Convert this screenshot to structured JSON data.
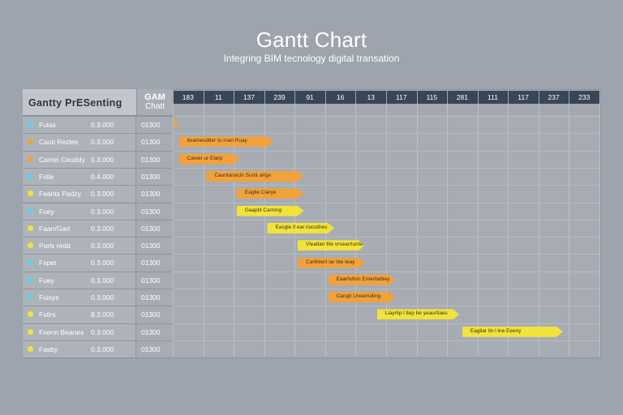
{
  "title": "Gantt Chart",
  "subtitle": "Integring BIM tecnology digital transation",
  "table": {
    "header": "Gantty PrESenting",
    "sub_header_1": "GAM",
    "sub_header_2": "Chatt"
  },
  "colors": {
    "orange": "#f2a23a",
    "yellow": "#f1e33a",
    "cyan": "#5fd3f0",
    "header_dark": "#394657"
  },
  "chart_data": {
    "type": "bar",
    "title": "Gantt Chart",
    "subtitle": "Integring BIM tecnology digital transation",
    "x_ticks": [
      "183",
      "11",
      "137",
      "239",
      "91",
      "16",
      "13",
      "117",
      "115",
      "281",
      "111",
      "117",
      "237",
      "233"
    ],
    "rows": [
      {
        "name": "Fulas",
        "dot": "cyan",
        "v1": "0.3.000",
        "v2": "01300"
      },
      {
        "name": "Cauti Rezles",
        "dot": "orange",
        "v1": "0.3.000",
        "v2": "01300"
      },
      {
        "name": "Carnin Ceuddy",
        "dot": "orange",
        "v1": "0.3.000",
        "v2": "01300"
      },
      {
        "name": "Fstle",
        "dot": "cyan",
        "v1": "0.4.000",
        "v2": "01300"
      },
      {
        "name": "Feants Padzy",
        "dot": "yellow",
        "v1": "0.3.000",
        "v2": "01300"
      },
      {
        "name": "Fuey",
        "dot": "cyan",
        "v1": "0.3.000",
        "v2": "01300"
      },
      {
        "name": "Faan/Gart",
        "dot": "yellow",
        "v1": "0.3.000",
        "v2": "01300"
      },
      {
        "name": "Parls redd",
        "dot": "yellow",
        "v1": "0.3.000",
        "v2": "01300"
      },
      {
        "name": "Fxpet",
        "dot": "cyan",
        "v1": "0.3.000",
        "v2": "01300"
      },
      {
        "name": "Fuey",
        "dot": "cyan",
        "v1": "0.3.000",
        "v2": "01300"
      },
      {
        "name": "Fuisys",
        "dot": "cyan",
        "v1": "0.3.000",
        "v2": "01300"
      },
      {
        "name": "Fstlrs",
        "dot": "yellow",
        "v1": "8.3.000",
        "v2": "01300"
      },
      {
        "name": "Fxerm Beanes",
        "dot": "yellow",
        "v1": "0.3.000",
        "v2": "01300"
      },
      {
        "name": "Fasby",
        "dot": "yellow",
        "v1": "0.3.000",
        "v2": "01300"
      }
    ],
    "tasks": [
      {
        "row": 1,
        "label": "Iteamesdtler tu man Ruay",
        "start": 0.2,
        "end": 3.3,
        "color": "orange"
      },
      {
        "row": 2,
        "label": "Caneir ur Elarp",
        "start": 0.2,
        "end": 2.2,
        "color": "orange"
      },
      {
        "row": 3,
        "label": "Cauntaroicin Sumt alrge",
        "start": 1.1,
        "end": 4.3,
        "color": "orange"
      },
      {
        "row": 4,
        "label": "Eaglle Ciarye",
        "start": 2.1,
        "end": 4.3,
        "color": "orange"
      },
      {
        "row": 5,
        "label": "Gaaplit Carning",
        "start": 2.1,
        "end": 4.3,
        "color": "yellow"
      },
      {
        "row": 6,
        "label": "Easgle ll ear riuosthes",
        "start": 3.1,
        "end": 5.3,
        "color": "yellow"
      },
      {
        "row": 7,
        "label": "Vleatlan tlte vrsearrluntes",
        "start": 4.1,
        "end": 6.3,
        "color": "yellow"
      },
      {
        "row": 8,
        "label": "Carthilert lar bte teay",
        "start": 4.1,
        "end": 6.3,
        "color": "orange"
      },
      {
        "row": 9,
        "label": "Eaarhdton Emerilabley",
        "start": 5.1,
        "end": 7.3,
        "color": "orange"
      },
      {
        "row": 10,
        "label": "Cangit Lhearrulling",
        "start": 5.1,
        "end": 7.3,
        "color": "orange"
      },
      {
        "row": 11,
        "label": "Liayrlip l tlep be yeaurtlaes",
        "start": 6.7,
        "end": 9.4,
        "color": "yellow"
      },
      {
        "row": 12,
        "label": "Eagilar lin l lne Eeeny",
        "start": 9.5,
        "end": 12.8,
        "color": "yellow"
      }
    ],
    "grid": true
  }
}
